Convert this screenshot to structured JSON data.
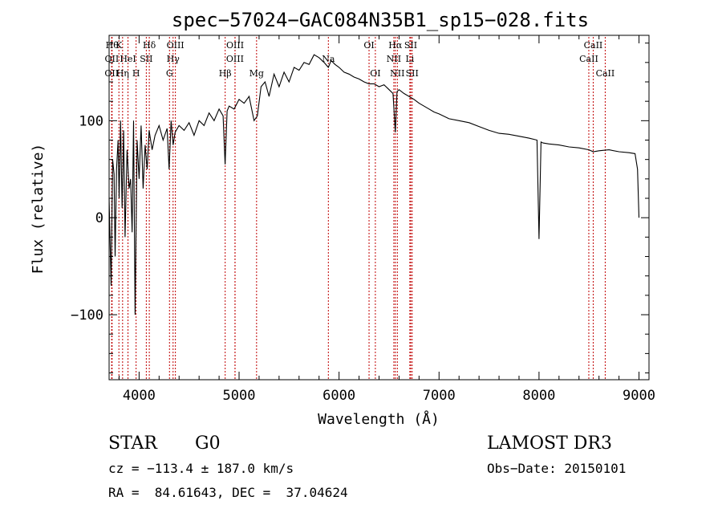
{
  "chart_data": {
    "type": "line",
    "title": "spec−57024−GAC084N35B1_sp15−028.fits",
    "xlabel": "Wavelength (Å)",
    "ylabel": "Flux (relative)",
    "xlim": [
      3700,
      9100
    ],
    "ylim": [
      -167,
      188
    ],
    "xticks": [
      {
        "value": 4000,
        "label": "4000"
      },
      {
        "value": 5000,
        "label": "5000"
      },
      {
        "value": 6000,
        "label": "6000"
      },
      {
        "value": 7000,
        "label": "7000"
      },
      {
        "value": 8000,
        "label": "8000"
      },
      {
        "value": 9000,
        "label": "9000"
      }
    ],
    "yticks": [
      {
        "value": -100,
        "label": "−100"
      },
      {
        "value": 0,
        "label": "0"
      },
      {
        "value": 100,
        "label": "100"
      }
    ],
    "series": [
      {
        "name": "spectrum",
        "x": [
          3700,
          3720,
          3735,
          3750,
          3760,
          3775,
          3790,
          3800,
          3815,
          3830,
          3845,
          3860,
          3880,
          3900,
          3915,
          3930,
          3945,
          3960,
          3980,
          4000,
          4020,
          4040,
          4060,
          4080,
          4100,
          4130,
          4160,
          4200,
          4240,
          4280,
          4300,
          4320,
          4340,
          4360,
          4400,
          4450,
          4500,
          4550,
          4600,
          4650,
          4700,
          4750,
          4800,
          4840,
          4860,
          4880,
          4900,
          4950,
          5000,
          5050,
          5100,
          5150,
          5183,
          5220,
          5260,
          5300,
          5350,
          5400,
          5450,
          5500,
          5550,
          5600,
          5650,
          5700,
          5750,
          5800,
          5850,
          5893,
          5920,
          5960,
          6000,
          6050,
          6100,
          6150,
          6200,
          6250,
          6300,
          6350,
          6400,
          6450,
          6500,
          6540,
          6563,
          6580,
          6600,
          6650,
          6700,
          6750,
          6800,
          6850,
          6900,
          6950,
          7000,
          7100,
          7200,
          7300,
          7400,
          7500,
          7600,
          7700,
          7800,
          7900,
          7980,
          8000,
          8020,
          8040,
          8100,
          8200,
          8300,
          8400,
          8500,
          8542,
          8600,
          8700,
          8800,
          8900,
          8960,
          8985,
          9000
        ],
        "y": [
          20,
          -70,
          60,
          45,
          -40,
          50,
          80,
          20,
          100,
          10,
          90,
          -20,
          70,
          30,
          40,
          -15,
          100,
          -100,
          80,
          40,
          95,
          30,
          75,
          50,
          90,
          70,
          85,
          95,
          80,
          92,
          50,
          100,
          75,
          88,
          95,
          90,
          98,
          85,
          100,
          95,
          108,
          100,
          112,
          105,
          55,
          110,
          115,
          112,
          122,
          118,
          125,
          100,
          105,
          135,
          140,
          125,
          148,
          135,
          150,
          140,
          155,
          152,
          160,
          158,
          168,
          165,
          160,
          155,
          162,
          158,
          155,
          150,
          148,
          145,
          143,
          140,
          138,
          138,
          135,
          137,
          132,
          128,
          88,
          130,
          132,
          128,
          125,
          122,
          118,
          115,
          112,
          109,
          107,
          102,
          100,
          98,
          94,
          90,
          87,
          86,
          84,
          82,
          80,
          -22,
          78,
          77,
          76,
          75,
          73,
          72,
          70,
          68,
          69,
          70,
          68,
          67,
          66,
          50,
          0
        ]
      }
    ],
    "lines": [
      {
        "x": 3730,
        "label": "Hθ",
        "row": 0
      },
      {
        "x": 3798,
        "label": "K",
        "row": 0
      },
      {
        "x": 4102,
        "label": "Hδ",
        "row": 0
      },
      {
        "x": 4363,
        "label": "OIII",
        "row": 0
      },
      {
        "x": 4960,
        "label": "OIII",
        "row": 0
      },
      {
        "x": 6300,
        "label": "OI",
        "row": 0
      },
      {
        "x": 6563,
        "label": "Hα",
        "row": 0
      },
      {
        "x": 6717,
        "label": "SII",
        "row": 0
      },
      {
        "x": 8542,
        "label": "CaII",
        "row": 0
      },
      {
        "x": 3727,
        "label": "OII",
        "row": 1
      },
      {
        "x": 3889,
        "label": "HeI",
        "row": 1
      },
      {
        "x": 4072,
        "label": "SII",
        "row": 1
      },
      {
        "x": 4340,
        "label": "Hγ",
        "row": 1
      },
      {
        "x": 4959,
        "label": "OIII",
        "row": 1
      },
      {
        "x": 5893,
        "label": "Na",
        "row": 1
      },
      {
        "x": 6548,
        "label": "NII",
        "row": 1
      },
      {
        "x": 6708,
        "label": "Li",
        "row": 1
      },
      {
        "x": 8498,
        "label": "CaII",
        "row": 1
      },
      {
        "x": 3726,
        "label": "OII",
        "row": 2
      },
      {
        "x": 3835,
        "label": "Hη",
        "row": 2
      },
      {
        "x": 3970,
        "label": "H",
        "row": 2
      },
      {
        "x": 4304,
        "label": "G",
        "row": 2
      },
      {
        "x": 4861,
        "label": "Hβ",
        "row": 2
      },
      {
        "x": 5175,
        "label": "Mg",
        "row": 2
      },
      {
        "x": 6363,
        "label": "OI",
        "row": 2
      },
      {
        "x": 6583,
        "label": "NII",
        "row": 2
      },
      {
        "x": 6731,
        "label": "SII",
        "row": 2
      },
      {
        "x": 8662,
        "label": "CaII",
        "row": 2
      }
    ]
  },
  "info": {
    "class_label": "STAR",
    "subclass_label": "G0",
    "survey": "LAMOST DR3",
    "cz_line": "cz = −113.4 ± 187.0 km/s",
    "obs_date": "Obs−Date: 20150101",
    "radec": "RA =  84.61643, DEC =  37.04624"
  },
  "colors": {
    "line_marker": "#c00000",
    "spectrum": "#000000",
    "axis": "#000000"
  }
}
